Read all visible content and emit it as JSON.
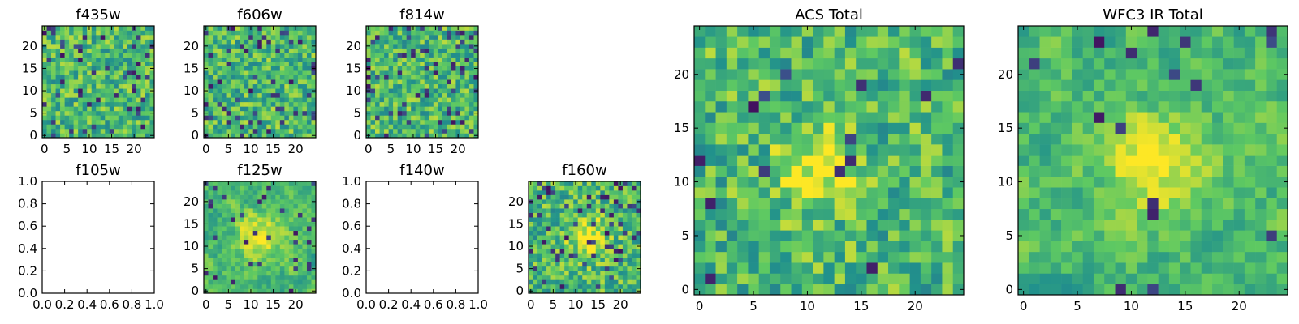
{
  "figure": {
    "colormap": [
      "#440154",
      "#3b528b",
      "#21918c",
      "#5ec962",
      "#fde725"
    ]
  },
  "chart_data": [
    {
      "id": "f435w",
      "type": "heatmap",
      "title": "f435w",
      "empty": false,
      "grid_size": 25,
      "xticks": [
        "0",
        "5",
        "10",
        "15",
        "20"
      ],
      "yticks": [
        "0",
        "5",
        "10",
        "15",
        "20"
      ],
      "xlim": [
        -0.5,
        24.5
      ],
      "ylim": [
        -0.5,
        24.5
      ],
      "seed": 11,
      "smooth": 0,
      "dark_rate": 0.08,
      "bright_blob": null
    },
    {
      "id": "f606w",
      "type": "heatmap",
      "title": "f606w",
      "empty": false,
      "grid_size": 25,
      "xticks": [
        "0",
        "5",
        "10",
        "15",
        "20"
      ],
      "yticks": [
        "0",
        "5",
        "10",
        "15",
        "20"
      ],
      "xlim": [
        -0.5,
        24.5
      ],
      "ylim": [
        -0.5,
        24.5
      ],
      "seed": 23,
      "smooth": 0,
      "dark_rate": 0.08,
      "bright_blob": null
    },
    {
      "id": "f814w",
      "type": "heatmap",
      "title": "f814w",
      "empty": false,
      "grid_size": 25,
      "xticks": [
        "0",
        "5",
        "10",
        "15",
        "20"
      ],
      "yticks": [
        "0",
        "5",
        "10",
        "15",
        "20"
      ],
      "xlim": [
        -0.5,
        24.5
      ],
      "ylim": [
        -0.5,
        24.5
      ],
      "seed": 37,
      "smooth": 0,
      "dark_rate": 0.1,
      "bright_blob": null
    },
    {
      "id": "f105w",
      "type": "heatmap",
      "title": "f105w",
      "empty": true,
      "xticks": [
        "0.0",
        "0.2",
        "0.4",
        "0.6",
        "0.8",
        "1.0"
      ],
      "yticks": [
        "0.0",
        "0.2",
        "0.4",
        "0.6",
        "0.8",
        "1.0"
      ],
      "xlim": [
        0,
        1
      ],
      "ylim": [
        0,
        1
      ]
    },
    {
      "id": "f125w",
      "type": "heatmap",
      "title": "f125w",
      "empty": false,
      "grid_size": 25,
      "xticks": [
        "0",
        "5",
        "10",
        "15",
        "20"
      ],
      "yticks": [
        "0",
        "5",
        "10",
        "15",
        "20"
      ],
      "xlim": [
        -0.5,
        24.5
      ],
      "ylim": [
        -0.5,
        24.5
      ],
      "seed": 51,
      "smooth": 1,
      "dark_rate": 0.05,
      "bright_blob": [
        12,
        12,
        3.5
      ]
    },
    {
      "id": "f140w",
      "type": "heatmap",
      "title": "f140w",
      "empty": true,
      "xticks": [
        "0.0",
        "0.2",
        "0.4",
        "0.6",
        "0.8",
        "1.0"
      ],
      "yticks": [
        "0.0",
        "0.2",
        "0.4",
        "0.6",
        "0.8",
        "1.0"
      ],
      "xlim": [
        0,
        1
      ],
      "ylim": [
        0,
        1
      ]
    },
    {
      "id": "f160w",
      "type": "heatmap",
      "title": "f160w",
      "empty": false,
      "grid_size": 25,
      "xticks": [
        "0",
        "5",
        "10",
        "15",
        "20"
      ],
      "yticks": [
        "0",
        "5",
        "10",
        "15",
        "20"
      ],
      "xlim": [
        -0.5,
        24.5
      ],
      "ylim": [
        -0.5,
        24.5
      ],
      "seed": 67,
      "smooth": 0,
      "dark_rate": 0.07,
      "bright_blob": [
        13,
        12,
        3
      ]
    },
    {
      "id": "acs-total",
      "type": "heatmap",
      "title": "ACS Total",
      "empty": false,
      "grid_size": 25,
      "xticks": [
        "0",
        "5",
        "10",
        "15",
        "20"
      ],
      "yticks": [
        "0",
        "5",
        "10",
        "15",
        "20"
      ],
      "xlim": [
        -0.5,
        24.5
      ],
      "ylim": [
        -0.5,
        24.5
      ],
      "seed": 79,
      "smooth": 0,
      "dark_rate": 0.03,
      "bright_blob": [
        11,
        11,
        2.5
      ]
    },
    {
      "id": "wfc3-ir-total",
      "type": "heatmap",
      "title": "WFC3 IR Total",
      "empty": false,
      "grid_size": 25,
      "xticks": [
        "0",
        "5",
        "10",
        "15",
        "20"
      ],
      "yticks": [
        "0",
        "5",
        "10",
        "15",
        "20"
      ],
      "xlim": [
        -0.5,
        24.5
      ],
      "ylim": [
        -0.5,
        24.5
      ],
      "seed": 97,
      "smooth": 1,
      "dark_rate": 0.03,
      "bright_blob": [
        12,
        12,
        3
      ]
    }
  ]
}
